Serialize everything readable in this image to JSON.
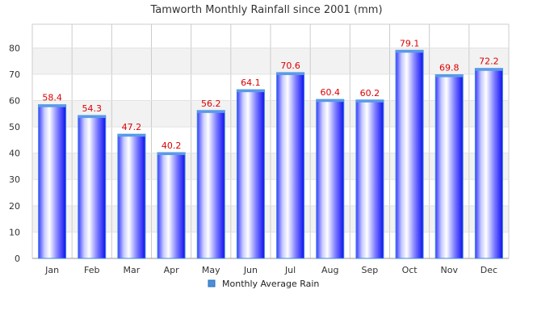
{
  "chart_data": {
    "type": "bar",
    "title": "Tamworth Monthly Rainfall since 2001 (mm)",
    "categories": [
      "Jan",
      "Feb",
      "Mar",
      "Apr",
      "May",
      "Jun",
      "Jul",
      "Aug",
      "Sep",
      "Oct",
      "Nov",
      "Dec"
    ],
    "series": [
      {
        "name": "Monthly Average Rain",
        "values": [
          58.4,
          54.3,
          47.2,
          40.2,
          56.2,
          64.1,
          70.6,
          60.4,
          60.2,
          79.1,
          69.8,
          72.2
        ]
      }
    ],
    "ylim": [
      0,
      89
    ],
    "yticks": [
      0,
      10,
      20,
      30,
      40,
      50,
      60,
      70,
      80
    ],
    "grid": true,
    "legend_position": "bottom",
    "colors": {
      "bar_edge": "#1a1aff",
      "bar_center": "#ffffff",
      "bar_outline": "#3d8bdd",
      "data_label": "#dd0000",
      "legend_swatch": "#4a90d9",
      "band_alt": "#f2f2f2",
      "grid_line": "#cccccc"
    }
  }
}
